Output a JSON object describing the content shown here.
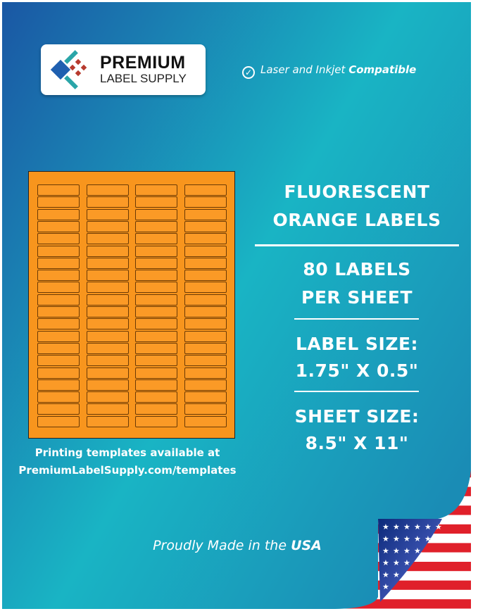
{
  "brand": {
    "name_line1": "PREMIUM",
    "name_line2": "LABEL SUPPLY"
  },
  "compat": {
    "prefix": "Laser and Inkjet ",
    "emphasis": "Compatible",
    "icon": "check-circle-icon"
  },
  "product": {
    "title_line1": "FLUORESCENT",
    "title_line2": "ORANGE LABELS",
    "count_line1": "80 LABELS",
    "count_line2": "PER SHEET",
    "label_size_heading": "LABEL SIZE:",
    "label_size_value": "1.75\" X 0.5\"",
    "sheet_size_heading": "SHEET SIZE:",
    "sheet_size_value": "8.5\" X 11\""
  },
  "sheet_grid": {
    "columns": 4,
    "rows": 20,
    "label_color": "#f8951d"
  },
  "templates": {
    "line1": "Printing templates available at",
    "line2": "PremiumLabelSupply.com/templates"
  },
  "origin": {
    "prefix": "Proudly Made in the ",
    "emphasis": "USA",
    "icon": "us-flag-icon"
  },
  "colors": {
    "gradient_start": "#1a5aa6",
    "gradient_end": "#19bcc6",
    "accent": "#f8951d"
  }
}
